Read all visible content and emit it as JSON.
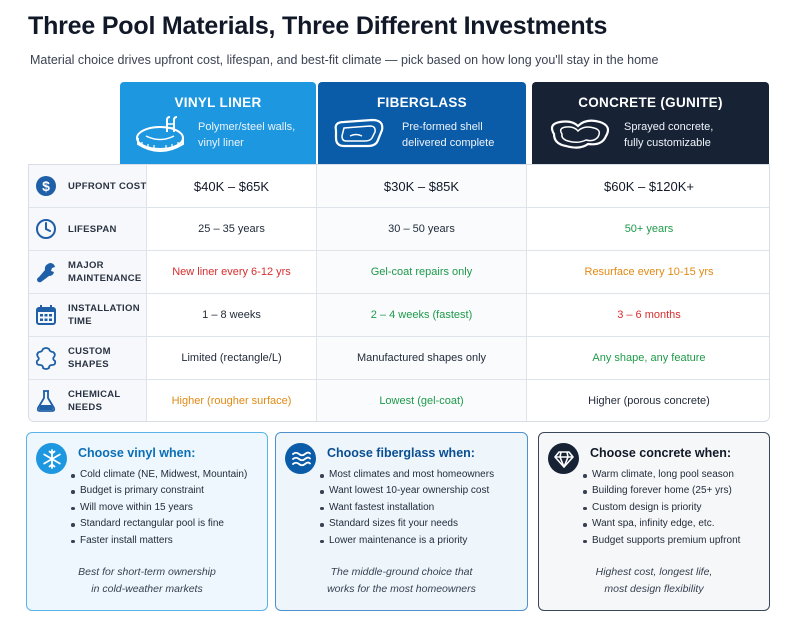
{
  "title": "Three Pool Materials, Three Different Investments",
  "subtitle": "Material choice drives upfront cost, lifespan, and best-fit climate — pick based on how long you'll stay in the home",
  "columns": [
    {
      "name": "VINYL LINER",
      "desc1": "Polymer/steel walls,",
      "desc2": "vinyl liner",
      "icon": "pool-ladder-icon",
      "color": "#1d97e0"
    },
    {
      "name": "FIBERGLASS",
      "desc1": "Pre-formed shell",
      "desc2": "delivered complete",
      "icon": "pool-shell-icon",
      "color": "#0a5ba8"
    },
    {
      "name": "CONCRETE (GUNITE)",
      "desc1": "Sprayed concrete,",
      "desc2": "fully customizable",
      "icon": "freeform-pool-icon",
      "color": "#172335"
    }
  ],
  "rows": [
    {
      "icon": "dollar-icon",
      "label1": "UPFRONT COST",
      "label2": "",
      "vinyl": "$40K – $65K",
      "fiberglass": "$30K – $85K",
      "concrete": "$60K – $120K+"
    },
    {
      "icon": "clock-icon",
      "label1": "LIFESPAN",
      "label2": "",
      "vinyl": "25 – 35 years",
      "fiberglass": "30 – 50 years",
      "concrete": "50+ years"
    },
    {
      "icon": "wrench-icon",
      "label1": "MAJOR",
      "label2": "MAINTENANCE",
      "vinyl": "New liner every 6-12 yrs",
      "fiberglass": "Gel-coat repairs only",
      "concrete": "Resurface every 10-15 yrs"
    },
    {
      "icon": "calendar-icon",
      "label1": "INSTALLATION",
      "label2": "TIME",
      "vinyl": "1 – 8 weeks",
      "fiberglass": "2 – 4 weeks (fastest)",
      "concrete": "3 – 6 months"
    },
    {
      "icon": "puzzle-shape-icon",
      "label1": "CUSTOM",
      "label2": "SHAPES",
      "vinyl": "Limited (rectangle/L)",
      "fiberglass": "Manufactured shapes only",
      "concrete": "Any shape, any feature"
    },
    {
      "icon": "flask-icon",
      "label1": "CHEMICAL",
      "label2": "NEEDS",
      "vinyl": "Higher (rougher surface)",
      "fiberglass": "Lowest (gel-coat)",
      "concrete": "Higher (porous concrete)"
    }
  ],
  "cards": [
    {
      "icon": "snowflake-icon",
      "title": "Choose vinyl when:",
      "title_color": "#0b6fb5",
      "items": [
        "Cold climate (NE, Midwest, Mountain)",
        "Budget is primary constraint",
        "Will move within 15 years",
        "Standard rectangular pool is fine",
        "Faster install matters"
      ],
      "note1": "Best for short-term ownership",
      "note2": "in cold-weather markets"
    },
    {
      "icon": "waves-icon",
      "title": "Choose fiberglass when:",
      "title_color": "#0a4f92",
      "items": [
        "Most climates and most homeowners",
        "Want lowest 10-year ownership cost",
        "Want fastest installation",
        "Standard sizes fit your needs",
        "Lower maintenance is a priority"
      ],
      "note1": "The middle-ground choice that",
      "note2": "works for the most homeowners"
    },
    {
      "icon": "diamond-icon",
      "title": "Choose concrete when:",
      "title_color": "#111827",
      "items": [
        "Warm climate, long pool season",
        "Building forever home (25+ yrs)",
        "Custom design is priority",
        "Want spa, infinity edge, etc.",
        "Budget supports premium upfront"
      ],
      "note1": "Highest cost, longest life,",
      "note2": "most design flexibility"
    }
  ],
  "colors": {
    "dark_navy": "#172335",
    "icon_blue": "#1f5fa8",
    "red": "#d62f2f",
    "green": "#1f9a4a",
    "orange": "#e08a14"
  }
}
